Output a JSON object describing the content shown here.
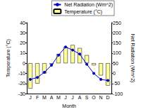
{
  "chart_data": {
    "type": "bar",
    "categories": [
      "J",
      "F",
      "M",
      "A",
      "M",
      "J",
      "J",
      "A",
      "S",
      "O",
      "N",
      "D"
    ],
    "x_label": "Month",
    "y_label": "Temperature (°C)",
    "y2_label": "Net Radiation (Wm^2)",
    "ylim": [
      -30,
      40
    ],
    "yticks": [
      -30,
      -20,
      -10,
      0,
      10,
      20,
      30,
      40
    ],
    "y2lim": [
      -100,
      250
    ],
    "y2ticks": [
      -100,
      -50,
      0,
      50,
      100,
      150,
      200,
      250
    ],
    "grid": false,
    "legend": "top",
    "series": [
      {
        "name": "Net Radiation (Wm^2)",
        "type": "line",
        "axis": "y2",
        "color": "#0000cc",
        "marker": "circle",
        "values": [
          -30,
          -20,
          5,
          40,
          90,
          130,
          115,
          95,
          45,
          0,
          -30,
          -35
        ]
      },
      {
        "name": "Temperature (°C)",
        "type": "bar",
        "color": "#ffff99",
        "values": [
          -25,
          -20,
          -10,
          -1,
          9,
          16,
          18,
          15,
          8,
          -2,
          -12,
          -22
        ]
      }
    ]
  }
}
